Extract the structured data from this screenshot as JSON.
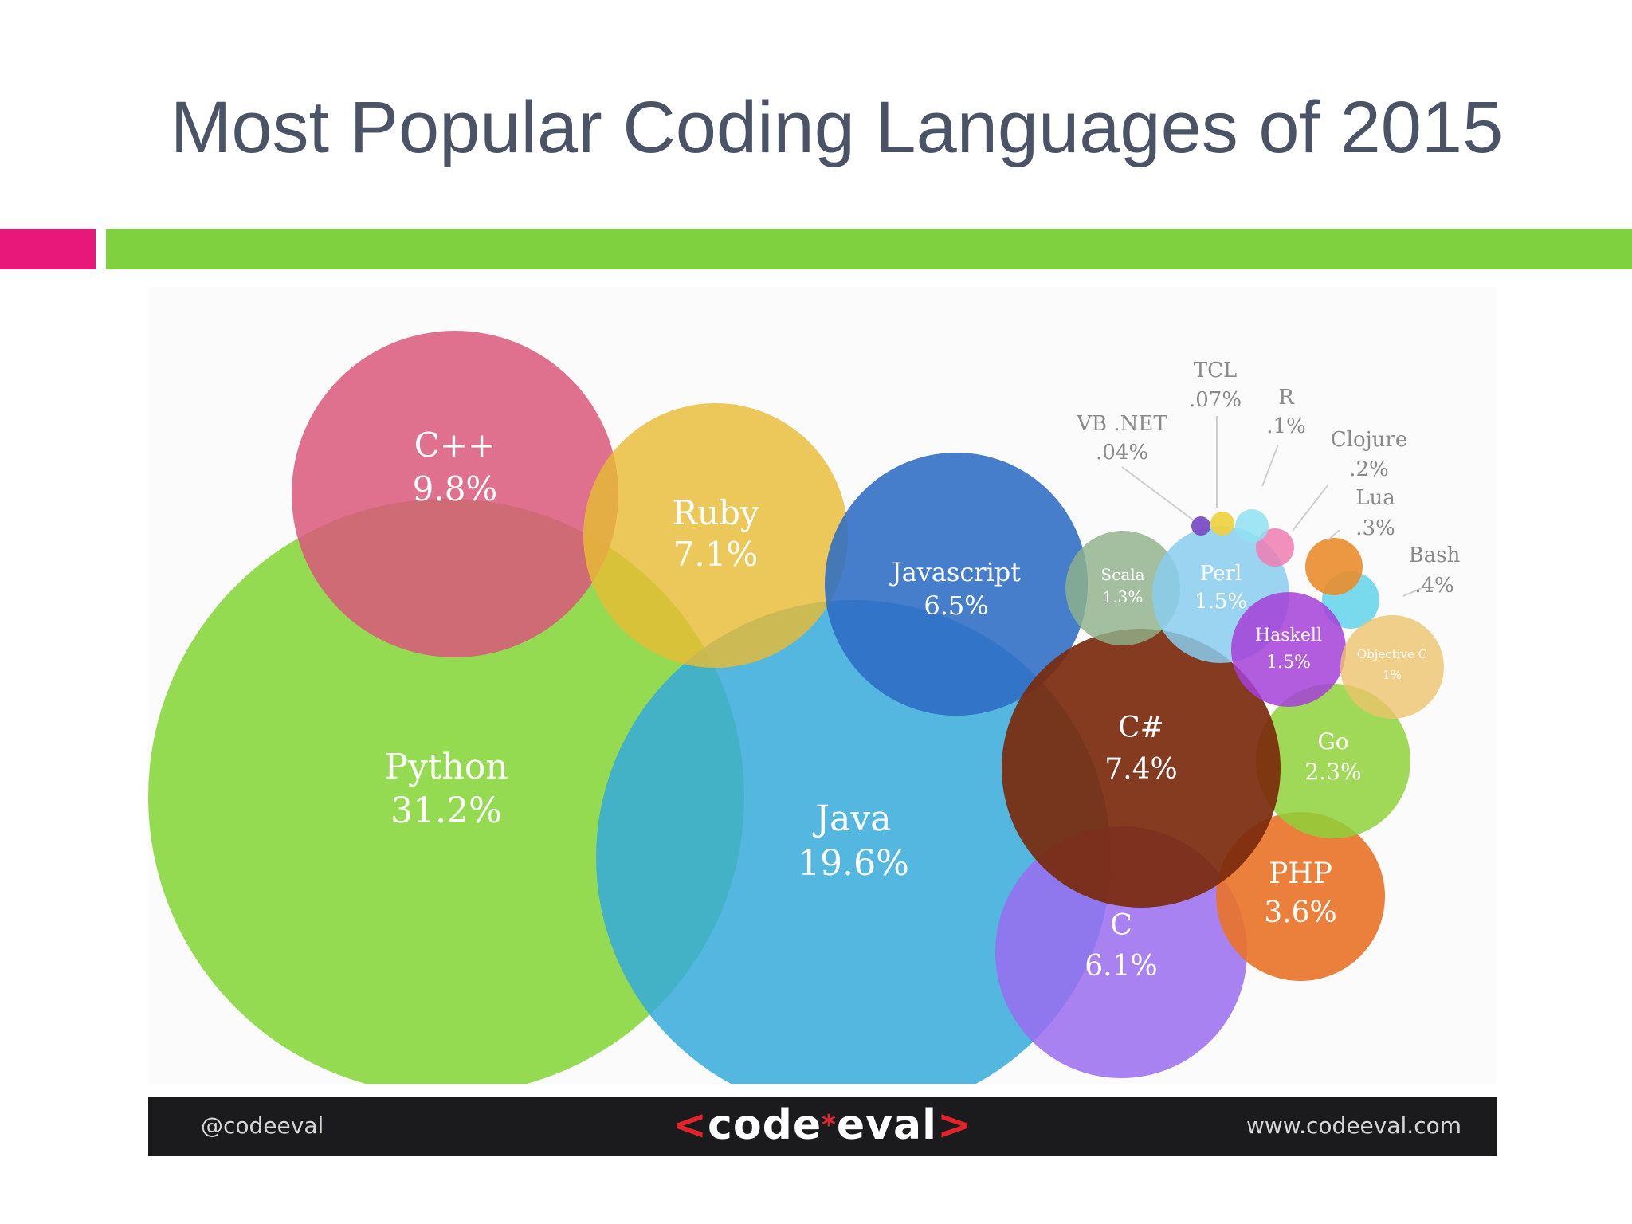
{
  "slide": {
    "title": "Most Popular Coding Languages of 2015"
  },
  "footer": {
    "handle": "@codeeval",
    "logo_left": "<",
    "logo_text_a": "code",
    "logo_star": "*",
    "logo_text_b": "eval",
    "logo_right": ">",
    "url": "www.codeeval.com"
  },
  "colors": {
    "title": "#4b5467",
    "accent_pink": "#e8177a",
    "accent_green": "#7fd13f",
    "footer_bg": "#1b1b1d",
    "logo_red": "#e2232a"
  },
  "chart_data": {
    "type": "bubble",
    "title": "",
    "grid": false,
    "legend": "none",
    "series": [
      {
        "name": "Python",
        "value_label": "31.2%",
        "value": 31.2,
        "color": "#86d63a",
        "label_color": "#ffffff"
      },
      {
        "name": "Java",
        "value_label": "19.6%",
        "value": 19.6,
        "color": "#36aadb",
        "label_color": "#ffffff"
      },
      {
        "name": "C++",
        "value_label": "9.8%",
        "value": 9.8,
        "color": "#d9577a",
        "label_color": "#ffffff"
      },
      {
        "name": "C#",
        "value_label": "7.4%",
        "value": 7.4,
        "color": "#7a2a0c",
        "label_color": "#ffffff"
      },
      {
        "name": "Ruby",
        "value_label": "7.1%",
        "value": 7.1,
        "color": "#e6bc34",
        "label_color": "#ffffff"
      },
      {
        "name": "Javascript",
        "value_label": "6.5%",
        "value": 6.5,
        "color": "#2e6cc4",
        "label_color": "#ffffff"
      },
      {
        "name": "C",
        "value_label": "6.1%",
        "value": 6.1,
        "color": "#9a6cf0",
        "label_color": "#ffffff"
      },
      {
        "name": "PHP",
        "value_label": "3.6%",
        "value": 3.6,
        "color": "#e97228",
        "label_color": "#ffffff"
      },
      {
        "name": "Go",
        "value_label": "2.3%",
        "value": 2.3,
        "color": "#8fd13a",
        "label_color": "#ffffff"
      },
      {
        "name": "Perl",
        "value_label": "1.5%",
        "value": 1.5,
        "color": "#89ccef",
        "label_color": "#ffffff"
      },
      {
        "name": "Haskell",
        "value_label": "1.5%",
        "value": 1.5,
        "color": "#a53fd8",
        "label_color": "#ffffff"
      },
      {
        "name": "Scala",
        "value_label": "1.3%",
        "value": 1.3,
        "color": "#8fb18a",
        "label_color": "#ffffff"
      },
      {
        "name": "Objective C",
        "value_label": "1%",
        "value": 1.0,
        "color": "#ecc46c",
        "label_color": "#ffffff"
      },
      {
        "name": "Bash",
        "value_label": ".4%",
        "value": 0.4,
        "color": "#62d3ea",
        "label_color": "#8a8a8a"
      },
      {
        "name": "Lua",
        "value_label": ".3%",
        "value": 0.3,
        "color": "#ea8c2c",
        "label_color": "#8a8a8a"
      },
      {
        "name": "Clojure",
        "value_label": ".2%",
        "value": 0.2,
        "color": "#ee7db2",
        "label_color": "#8a8a8a"
      },
      {
        "name": "R",
        "value_label": ".1%",
        "value": 0.1,
        "color": "#8fe0f2",
        "label_color": "#8a8a8a"
      },
      {
        "name": "TCL",
        "value_label": ".07%",
        "value": 0.07,
        "color": "#eed13b",
        "label_color": "#8a8a8a"
      },
      {
        "name": "VB .NET",
        "value_label": ".04%",
        "value": 0.04,
        "color": "#7a4ec6",
        "label_color": "#8a8a8a"
      }
    ]
  }
}
